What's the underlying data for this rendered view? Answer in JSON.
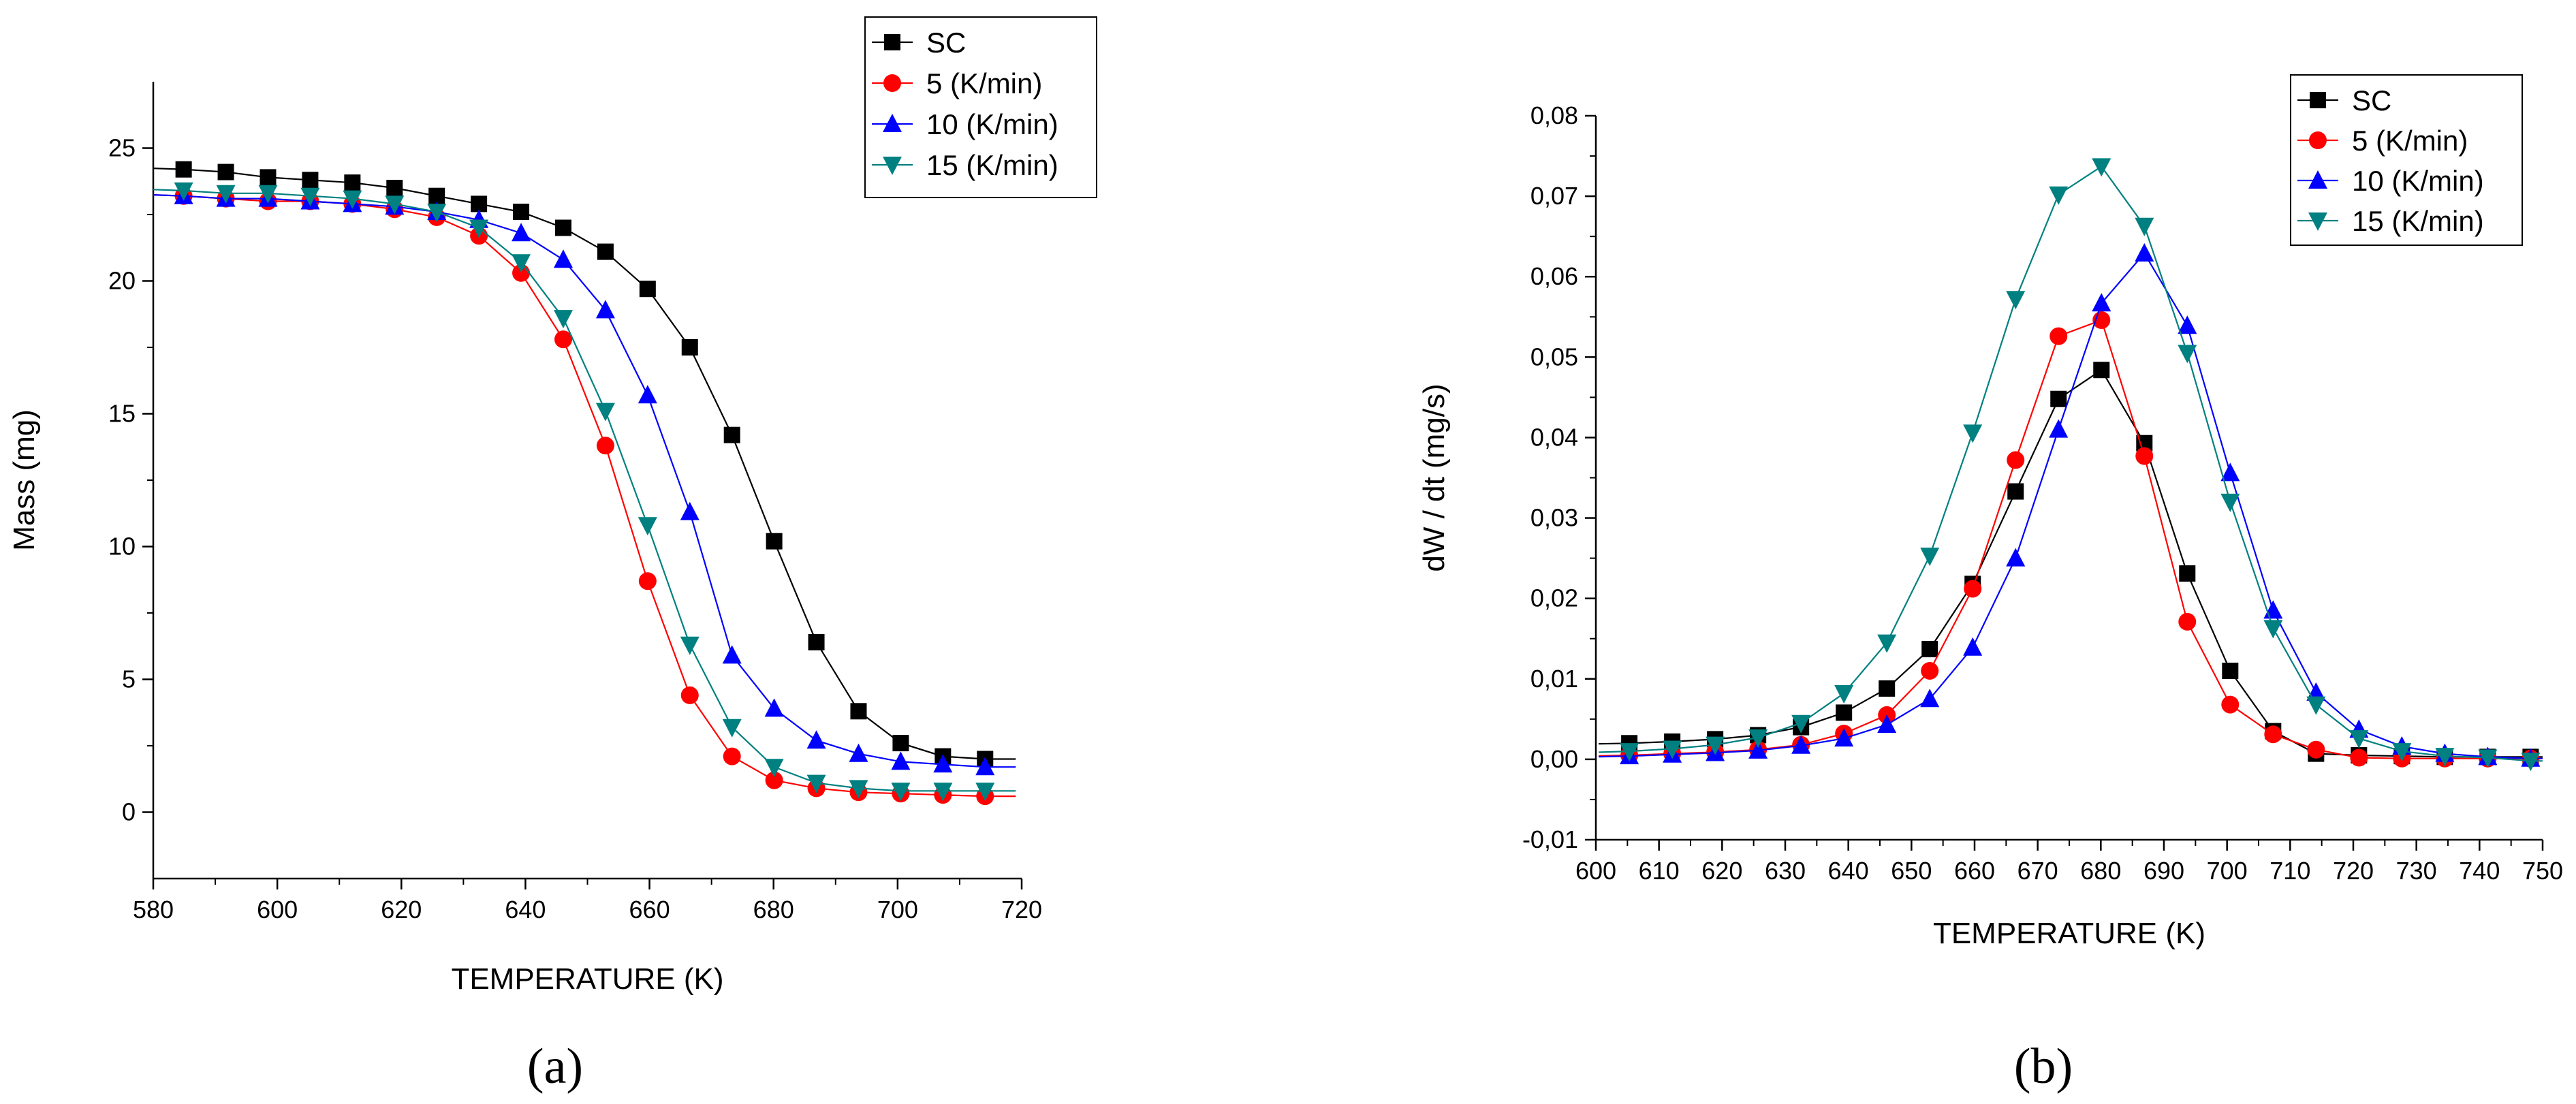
{
  "chart_data": [
    {
      "type": "line",
      "panel_label": "(a)",
      "title": "",
      "xlabel": "TEMPERATURE (K)",
      "ylabel": "Mass (mg)",
      "xlim": [
        580,
        720
      ],
      "ylim": [
        -2.5,
        27.5
      ],
      "xticks": [
        580,
        600,
        620,
        640,
        660,
        680,
        700,
        720
      ],
      "yticks": [
        0,
        5,
        10,
        15,
        20,
        25
      ],
      "xtick_labels": [
        "580",
        "600",
        "620",
        "640",
        "660",
        "680",
        "700",
        "720"
      ],
      "ytick_labels": [
        "0",
        "5",
        "10",
        "15",
        "20",
        "25"
      ],
      "legend_position": "top-right",
      "x": [
        584.9,
        591.7,
        598.5,
        605.3,
        612.1,
        618.9,
        625.7,
        632.5,
        639.3,
        646.1,
        652.9,
        659.7,
        666.5,
        673.3,
        680.1,
        686.9,
        693.7,
        700.5,
        707.3,
        714.1
      ],
      "series": [
        {
          "name": "SC",
          "marker": "square",
          "color": "#000000",
          "values": [
            24.2,
            24.1,
            23.9,
            23.8,
            23.7,
            23.5,
            23.2,
            22.9,
            22.6,
            22.0,
            21.1,
            19.7,
            17.5,
            14.2,
            10.2,
            6.4,
            3.8,
            2.6,
            2.1,
            2.0
          ]
        },
        {
          "name": "5 (K/min)",
          "marker": "circle",
          "color": "#ff0000",
          "values": [
            23.2,
            23.1,
            23.0,
            23.0,
            22.9,
            22.7,
            22.4,
            21.7,
            20.3,
            17.8,
            13.8,
            8.7,
            4.4,
            2.1,
            1.2,
            0.9,
            0.75,
            0.7,
            0.65,
            0.6
          ]
        },
        {
          "name": "10 (K/min)",
          "marker": "triangle-up",
          "color": "#0000ff",
          "values": [
            23.2,
            23.1,
            23.1,
            23.0,
            22.9,
            22.8,
            22.6,
            22.3,
            21.8,
            20.8,
            18.9,
            15.7,
            11.3,
            5.9,
            3.9,
            2.7,
            2.2,
            1.9,
            1.8,
            1.7
          ]
        },
        {
          "name": "15 (K/min)",
          "marker": "triangle-down",
          "color": "#008080",
          "values": [
            23.4,
            23.3,
            23.3,
            23.2,
            23.1,
            22.9,
            22.6,
            22.0,
            20.7,
            18.6,
            15.1,
            10.8,
            6.3,
            3.2,
            1.7,
            1.1,
            0.9,
            0.8,
            0.8,
            0.8
          ]
        }
      ]
    },
    {
      "type": "line",
      "panel_label": "(b)",
      "title": "",
      "xlabel": "TEMPERATURE (K)",
      "ylabel": "dW / dt (mg/s)",
      "xlim": [
        600,
        750
      ],
      "ylim": [
        -0.01,
        0.08
      ],
      "xticks": [
        600,
        610,
        620,
        630,
        640,
        650,
        660,
        670,
        680,
        690,
        700,
        710,
        720,
        730,
        740,
        750
      ],
      "yticks": [
        -0.01,
        0.0,
        0.01,
        0.02,
        0.03,
        0.04,
        0.05,
        0.06,
        0.07,
        0.08
      ],
      "xtick_labels": [
        "600",
        "610",
        "620",
        "630",
        "640",
        "650",
        "660",
        "670",
        "680",
        "690",
        "700",
        "710",
        "720",
        "730",
        "740",
        "750"
      ],
      "ytick_labels": [
        "-0,01",
        "0,00",
        "0,01",
        "0,02",
        "0,03",
        "0,04",
        "0,05",
        "0,06",
        "0,07",
        "0,08"
      ],
      "legend_position": "top-right",
      "x": [
        605.3,
        612.1,
        618.9,
        625.7,
        632.5,
        639.3,
        646.1,
        652.9,
        659.7,
        666.5,
        673.3,
        680.1,
        686.9,
        693.7,
        700.5,
        707.3,
        714.1,
        720.9,
        727.7,
        734.5,
        741.3,
        748.1
      ],
      "series": [
        {
          "name": "SC",
          "marker": "square",
          "color": "#000000",
          "values": [
            0.002,
            0.0022,
            0.0025,
            0.003,
            0.004,
            0.0058,
            0.0088,
            0.0137,
            0.0218,
            0.0333,
            0.0448,
            0.0484,
            0.0393,
            0.0231,
            0.011,
            0.0035,
            0.0007,
            0.0005,
            0.0004,
            0.0003,
            0.0003,
            0.0003
          ]
        },
        {
          "name": "5 (K/min)",
          "marker": "circle",
          "color": "#ff0000",
          "values": [
            0.0005,
            0.0007,
            0.0009,
            0.0012,
            0.0018,
            0.0032,
            0.0055,
            0.011,
            0.0212,
            0.0372,
            0.0526,
            0.0546,
            0.0377,
            0.0171,
            0.0068,
            0.0031,
            0.0012,
            0.0002,
            0.0001,
            0.0001,
            0.0001,
            0.0001
          ]
        },
        {
          "name": "10 (K/min)",
          "marker": "triangle-up",
          "color": "#0000ff",
          "values": [
            0.0004,
            0.0006,
            0.0008,
            0.0011,
            0.0017,
            0.0026,
            0.0043,
            0.0075,
            0.0139,
            0.025,
            0.041,
            0.0567,
            0.0629,
            0.0539,
            0.0356,
            0.0185,
            0.0083,
            0.0037,
            0.0016,
            0.0007,
            0.0003,
            0.0001
          ]
        },
        {
          "name": "15 (K/min)",
          "marker": "triangle-down",
          "color": "#008080",
          "values": [
            0.001,
            0.0013,
            0.0018,
            0.0027,
            0.0045,
            0.0082,
            0.0145,
            0.0253,
            0.0406,
            0.0572,
            0.0702,
            0.0737,
            0.0663,
            0.0505,
            0.032,
            0.0163,
            0.0068,
            0.0026,
            0.001,
            0.0004,
            0.0002,
            -0.0002
          ]
        }
      ]
    }
  ]
}
